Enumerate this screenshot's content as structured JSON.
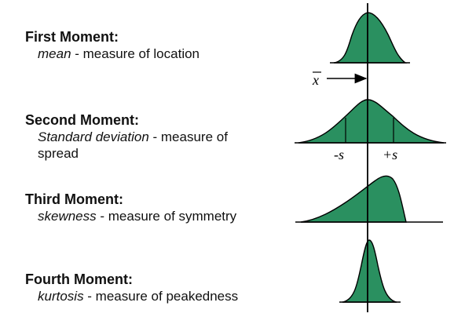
{
  "moments": [
    {
      "title": "First Moment:",
      "term": "mean",
      "desc": " - measure of location"
    },
    {
      "title": "Second Moment:",
      "term": "Standard deviation",
      "desc": " - measure of",
      "desc2": "spread"
    },
    {
      "title": "Third Moment:",
      "term": "skewness",
      "desc": " - measure of symmetry"
    },
    {
      "title": "Fourth Moment:",
      "term": "kurtosis",
      "desc": " - measure of peakedness"
    }
  ],
  "labels": {
    "xbar": "x",
    "minus_s": "-s",
    "plus_s": "+s"
  },
  "colors": {
    "fill": "#2a9060",
    "stroke": "#000000"
  }
}
